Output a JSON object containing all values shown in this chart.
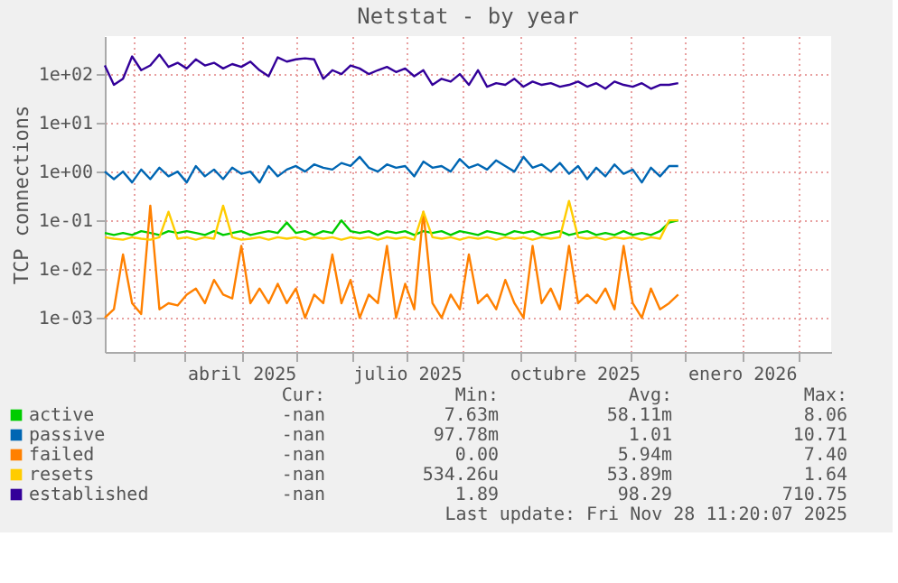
{
  "chart_data": {
    "type": "line",
    "title": "Netstat - by year",
    "ylabel": "TCP connections",
    "x": [
      "2025-01-16",
      "2025-01-21",
      "2025-01-26",
      "2025-01-31",
      "2025-02-05",
      "2025-02-10",
      "2025-02-15",
      "2025-02-20",
      "2025-02-25",
      "2025-03-02",
      "2025-03-07",
      "2025-03-12",
      "2025-03-17",
      "2025-03-22",
      "2025-03-27",
      "2025-04-01",
      "2025-04-06",
      "2025-04-11",
      "2025-04-16",
      "2025-04-21",
      "2025-04-26",
      "2025-05-01",
      "2025-05-06",
      "2025-05-11",
      "2025-05-16",
      "2025-05-21",
      "2025-05-26",
      "2025-05-31",
      "2025-06-05",
      "2025-06-10",
      "2025-06-15",
      "2025-06-20",
      "2025-06-25",
      "2025-06-30",
      "2025-07-05",
      "2025-07-10",
      "2025-07-15",
      "2025-07-20",
      "2025-07-25",
      "2025-07-30",
      "2025-08-04",
      "2025-08-09",
      "2025-08-14",
      "2025-08-19",
      "2025-08-24",
      "2025-08-29",
      "2025-09-03",
      "2025-09-08",
      "2025-09-13",
      "2025-09-18",
      "2025-09-23",
      "2025-09-28",
      "2025-10-03",
      "2025-10-08",
      "2025-10-13",
      "2025-10-18",
      "2025-10-23",
      "2025-10-28",
      "2025-11-02",
      "2025-11-07",
      "2025-11-12",
      "2025-11-17",
      "2025-11-22",
      "2025-11-27"
    ],
    "series": [
      {
        "name": "active",
        "color": "#00cc00",
        "values": [
          0.055,
          0.05,
          0.055,
          0.05,
          0.06,
          0.055,
          0.05,
          0.06,
          0.055,
          0.06,
          0.055,
          0.05,
          0.06,
          0.05,
          0.055,
          0.06,
          0.05,
          0.055,
          0.06,
          0.055,
          0.09,
          0.055,
          0.06,
          0.05,
          0.06,
          0.055,
          0.1,
          0.06,
          0.055,
          0.06,
          0.05,
          0.06,
          0.055,
          0.06,
          0.05,
          0.06,
          0.055,
          0.06,
          0.05,
          0.06,
          0.055,
          0.05,
          0.06,
          0.055,
          0.05,
          0.06,
          0.055,
          0.06,
          0.05,
          0.055,
          0.06,
          0.05,
          0.055,
          0.06,
          0.05,
          0.055,
          0.05,
          0.06,
          0.05,
          0.055,
          0.05,
          0.06,
          0.09,
          0.1
        ]
      },
      {
        "name": "passive",
        "color": "#0066b3",
        "values": [
          1.0,
          0.7,
          1.0,
          0.6,
          1.1,
          0.7,
          1.2,
          0.8,
          1.0,
          0.6,
          1.3,
          0.8,
          1.1,
          0.7,
          1.2,
          0.9,
          1.0,
          0.6,
          1.3,
          0.8,
          1.1,
          1.3,
          1.0,
          1.4,
          1.2,
          1.1,
          1.5,
          1.3,
          2.0,
          1.2,
          1.0,
          1.4,
          1.2,
          1.3,
          0.8,
          1.6,
          1.2,
          1.3,
          1.0,
          1.8,
          1.2,
          1.4,
          1.1,
          1.7,
          1.3,
          1.0,
          2.0,
          1.2,
          1.4,
          1.0,
          1.5,
          0.9,
          1.3,
          0.7,
          1.2,
          0.8,
          1.4,
          0.9,
          1.1,
          0.6,
          1.2,
          0.8,
          1.3,
          1.3
        ]
      },
      {
        "name": "failed",
        "color": "#ff8000",
        "values": [
          0.001,
          0.0015,
          0.02,
          0.002,
          0.0012,
          0.2,
          0.0015,
          0.002,
          0.0018,
          0.003,
          0.004,
          0.002,
          0.006,
          0.003,
          0.0025,
          0.03,
          0.002,
          0.004,
          0.002,
          0.005,
          0.002,
          0.004,
          0.001,
          0.003,
          0.002,
          0.02,
          0.002,
          0.006,
          0.001,
          0.003,
          0.002,
          0.03,
          0.001,
          0.005,
          0.0015,
          0.15,
          0.002,
          0.001,
          0.003,
          0.0015,
          0.02,
          0.002,
          0.003,
          0.0015,
          0.006,
          0.002,
          0.001,
          0.03,
          0.002,
          0.004,
          0.0015,
          0.03,
          0.002,
          0.003,
          0.002,
          0.004,
          0.0015,
          0.03,
          0.002,
          0.001,
          0.004,
          0.0015,
          0.002,
          0.003
        ]
      },
      {
        "name": "resets",
        "color": "#ffcc00",
        "values": [
          0.045,
          0.042,
          0.04,
          0.045,
          0.042,
          0.04,
          0.045,
          0.15,
          0.042,
          0.045,
          0.04,
          0.045,
          0.042,
          0.2,
          0.045,
          0.04,
          0.042,
          0.045,
          0.04,
          0.045,
          0.042,
          0.045,
          0.04,
          0.045,
          0.042,
          0.045,
          0.04,
          0.045,
          0.042,
          0.045,
          0.04,
          0.045,
          0.042,
          0.045,
          0.04,
          0.15,
          0.045,
          0.042,
          0.045,
          0.04,
          0.045,
          0.042,
          0.045,
          0.04,
          0.045,
          0.042,
          0.045,
          0.04,
          0.045,
          0.042,
          0.045,
          0.25,
          0.045,
          0.042,
          0.045,
          0.04,
          0.045,
          0.042,
          0.045,
          0.04,
          0.045,
          0.042,
          0.1,
          0.1
        ]
      },
      {
        "name": "established",
        "color": "#330099",
        "values": [
          150,
          60,
          80,
          230,
          120,
          150,
          250,
          140,
          170,
          130,
          200,
          150,
          170,
          130,
          160,
          140,
          180,
          120,
          90,
          220,
          180,
          200,
          210,
          200,
          80,
          120,
          100,
          150,
          130,
          100,
          120,
          140,
          110,
          130,
          90,
          120,
          60,
          80,
          70,
          100,
          60,
          120,
          55,
          65,
          60,
          80,
          55,
          70,
          60,
          65,
          55,
          60,
          70,
          55,
          65,
          50,
          70,
          60,
          55,
          65,
          50,
          60,
          60,
          65
        ]
      }
    ],
    "log": true,
    "ylim": [
      0.0002,
      600
    ],
    "yticks": [
      {
        "value": 0.001,
        "label": "1e-03"
      },
      {
        "value": 0.01,
        "label": "1e-02"
      },
      {
        "value": 0.1,
        "label": "1e-01"
      },
      {
        "value": 1,
        "label": "1e+00"
      },
      {
        "value": 10,
        "label": "1e+01"
      },
      {
        "value": 100,
        "label": "1e+02"
      }
    ],
    "xlim": [
      "2025-01-16",
      "2026-02-19"
    ],
    "xticks": [
      {
        "value": "2025-02-01",
        "label": null
      },
      {
        "value": "2025-03-01",
        "label": null
      },
      {
        "value": "2025-04-01",
        "label": "abril 2025"
      },
      {
        "value": "2025-05-01",
        "label": null
      },
      {
        "value": "2025-06-01",
        "label": null
      },
      {
        "value": "2025-07-01",
        "label": "julio 2025"
      },
      {
        "value": "2025-08-01",
        "label": null
      },
      {
        "value": "2025-09-01",
        "label": null
      },
      {
        "value": "2025-10-01",
        "label": "octubre 2025"
      },
      {
        "value": "2025-11-01",
        "label": null
      },
      {
        "value": "2025-12-01",
        "label": null
      },
      {
        "value": "2026-01-01",
        "label": "enero 2026"
      },
      {
        "value": "2026-02-01",
        "label": null
      }
    ],
    "grid": true,
    "legend": "bottom",
    "marker": "none",
    "line_style": "solid",
    "annotations": [
      "Cur:",
      "Min:",
      "Avg:",
      "Max:",
      "-nan",
      "7.63m",
      "58.11m",
      "8.06",
      "-nan",
      "97.78m",
      "1.01",
      "10.71",
      "-nan",
      "0.00",
      "5.94m",
      "7.40",
      "-nan",
      "534.26u",
      "53.89m",
      "1.64",
      "-nan",
      "1.89",
      "98.29",
      "710.75",
      "Last update: Fri Nov 28 11:20:07 2025"
    ]
  }
}
